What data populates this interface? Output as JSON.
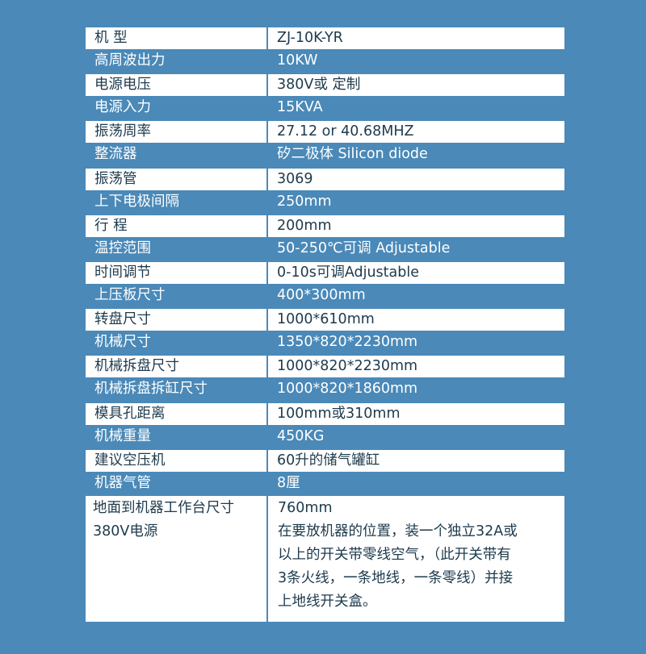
{
  "rows": [
    {
      "label": "机  型",
      "value": "ZJ-10K-YR"
    },
    {
      "label": "高周波出力",
      "value": "10KW"
    },
    {
      "label": "电源电压",
      "value": "380V或 定制"
    },
    {
      "label": "电源入力",
      "value": "15KVA"
    },
    {
      "label": "振荡周率",
      "value": "27.12 or 40.68MHZ"
    },
    {
      "label": "整流器",
      "value": "矽二极体  Silicon diode"
    },
    {
      "label": "振荡管",
      "value": "3069"
    },
    {
      "label": "上下电极间隔",
      "value": "250mm"
    },
    {
      "label": "行  程",
      "value": "200mm"
    },
    {
      "label": "温控范围",
      "value": "50-250℃可调 Adjustable"
    },
    {
      "label": "时间调节",
      "value": "0-10s可调Adjustable"
    },
    {
      "label": "上压板尺寸",
      "value": "400*300mm"
    },
    {
      "label": "转盘尺寸",
      "value": "1000*610mm"
    },
    {
      "label": "机械尺寸",
      "value": "1350*820*2230mm"
    },
    {
      "label": "机械拆盘尺寸",
      "value": "1000*820*2230mm"
    },
    {
      "label": "机械拆盘拆缸尺寸",
      "value": "1000*820*1860mm"
    },
    {
      "label": "模具孔距离",
      "value": "100mm或310mm"
    },
    {
      "label": "机械重量",
      "value": "450KG"
    },
    {
      "label": "建议空压机",
      "value": "60升的储气罐缸"
    },
    {
      "label": "机器气管",
      "value": "8厘"
    }
  ],
  "last_row": {
    "labels": [
      "地面到机器工作台尺寸",
      "380V电源"
    ],
    "values": [
      "760mm",
      "在要放机器的位置，装一个独立32A或",
      "以上的开关带零线空气，（此开关带有",
      "3条火线，一条地线，一条零线）并接",
      "上地线开关盒。"
    ]
  }
}
